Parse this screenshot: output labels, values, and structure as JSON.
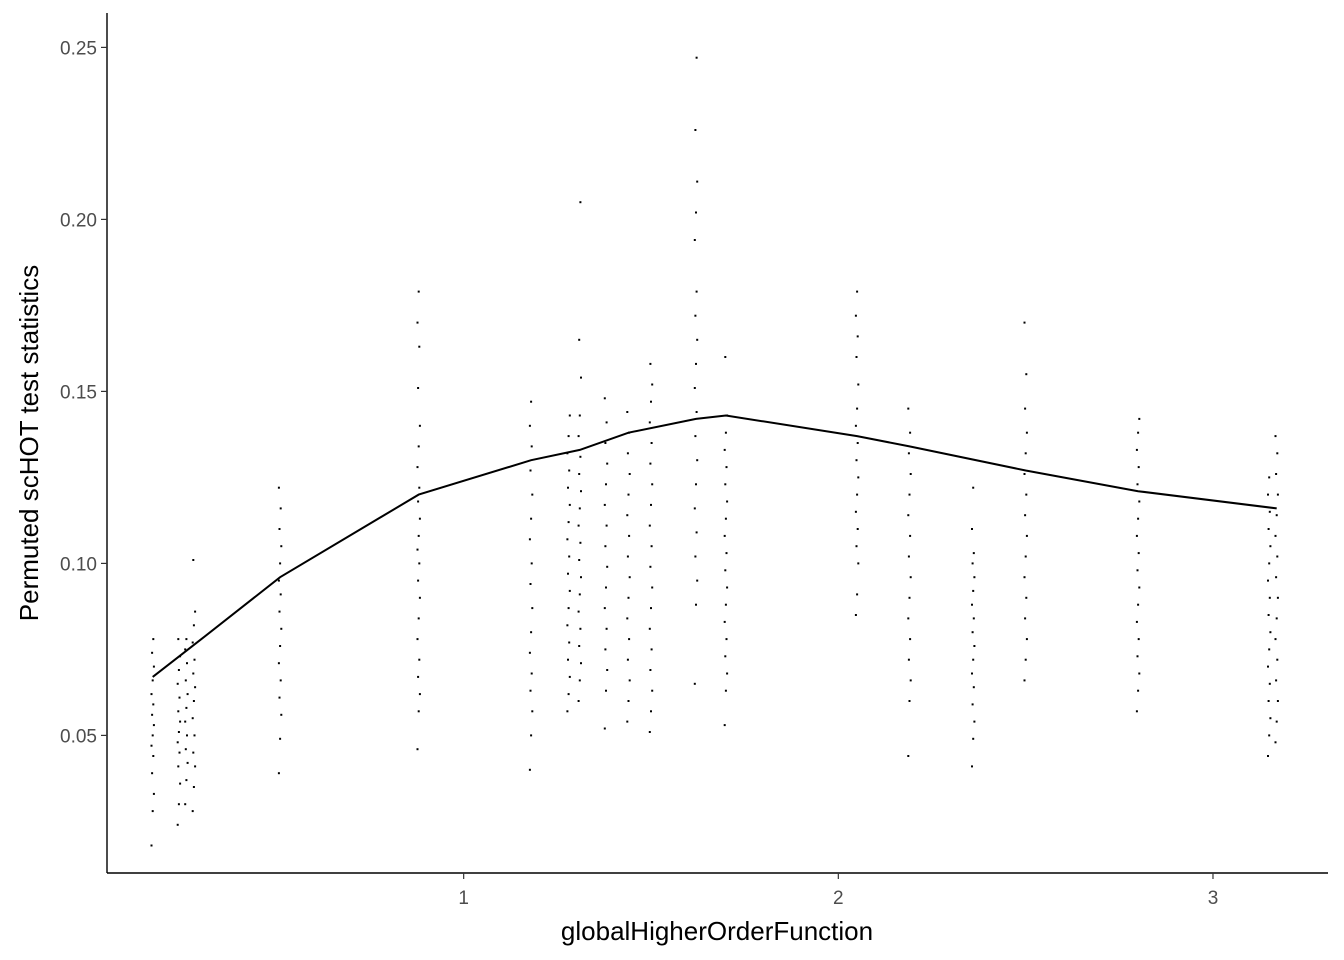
{
  "chart_data": {
    "type": "scatter",
    "xlabel": "globalHigherOrderFunction",
    "ylabel": "Permuted scHOT test statistics",
    "xlim": [
      0.048,
      3.307
    ],
    "ylim": [
      0.01,
      0.26
    ],
    "x_ticks": [
      1,
      2,
      3
    ],
    "x_tick_labels": [
      "1",
      "2",
      "3"
    ],
    "y_ticks": [
      0.05,
      0.1,
      0.15,
      0.2,
      0.25
    ],
    "y_tick_labels": [
      "0.05",
      "0.10",
      "0.15",
      "0.20",
      "0.25"
    ],
    "grid": false,
    "legend": "none",
    "colors": {
      "points": "#000000",
      "line": "#000000",
      "axes": "#000000",
      "tick_text": "#4d4d4d"
    },
    "point_columns": [
      {
        "x": 0.17,
        "ymin": 0.018,
        "ymax": 0.078,
        "values": [
          0.018,
          0.028,
          0.033,
          0.039,
          0.044,
          0.047,
          0.05,
          0.053,
          0.056,
          0.059,
          0.062,
          0.066,
          0.07,
          0.074,
          0.078
        ]
      },
      {
        "x": 0.24,
        "ymin": 0.024,
        "ymax": 0.078,
        "values": [
          0.024,
          0.03,
          0.036,
          0.041,
          0.045,
          0.048,
          0.051,
          0.054,
          0.057,
          0.061,
          0.065,
          0.069,
          0.073,
          0.078
        ]
      },
      {
        "x": 0.26,
        "ymin": 0.03,
        "ymax": 0.078,
        "values": [
          0.03,
          0.037,
          0.042,
          0.046,
          0.05,
          0.054,
          0.058,
          0.062,
          0.066,
          0.071,
          0.075,
          0.078
        ]
      },
      {
        "x": 0.28,
        "ymin": 0.028,
        "ymax": 0.101,
        "values": [
          0.028,
          0.035,
          0.041,
          0.045,
          0.05,
          0.055,
          0.06,
          0.064,
          0.068,
          0.072,
          0.077,
          0.082,
          0.086,
          0.101
        ]
      },
      {
        "x": 0.51,
        "ymin": 0.039,
        "ymax": 0.122,
        "values": [
          0.039,
          0.049,
          0.056,
          0.061,
          0.066,
          0.071,
          0.076,
          0.081,
          0.086,
          0.091,
          0.095,
          0.1,
          0.105,
          0.11,
          0.116,
          0.122
        ]
      },
      {
        "x": 0.88,
        "ymin": 0.046,
        "ymax": 0.179,
        "values": [
          0.046,
          0.057,
          0.062,
          0.067,
          0.072,
          0.078,
          0.084,
          0.09,
          0.095,
          0.1,
          0.104,
          0.108,
          0.113,
          0.118,
          0.122,
          0.128,
          0.134,
          0.14,
          0.151,
          0.163,
          0.17,
          0.179
        ]
      },
      {
        "x": 1.18,
        "ymin": 0.04,
        "ymax": 0.147,
        "values": [
          0.04,
          0.05,
          0.057,
          0.063,
          0.068,
          0.074,
          0.08,
          0.087,
          0.094,
          0.1,
          0.107,
          0.113,
          0.12,
          0.127,
          0.134,
          0.14,
          0.147
        ]
      },
      {
        "x": 1.28,
        "ymin": 0.057,
        "ymax": 0.143,
        "values": [
          0.057,
          0.062,
          0.067,
          0.072,
          0.077,
          0.082,
          0.087,
          0.092,
          0.097,
          0.102,
          0.107,
          0.112,
          0.117,
          0.122,
          0.127,
          0.132,
          0.137,
          0.143
        ]
      },
      {
        "x": 1.31,
        "ymin": 0.06,
        "ymax": 0.205,
        "values": [
          0.06,
          0.066,
          0.071,
          0.076,
          0.081,
          0.086,
          0.091,
          0.096,
          0.101,
          0.106,
          0.111,
          0.116,
          0.121,
          0.126,
          0.131,
          0.137,
          0.143,
          0.154,
          0.165,
          0.205
        ]
      },
      {
        "x": 1.38,
        "ymin": 0.052,
        "ymax": 0.148,
        "values": [
          0.052,
          0.063,
          0.069,
          0.075,
          0.081,
          0.087,
          0.093,
          0.099,
          0.105,
          0.111,
          0.117,
          0.123,
          0.129,
          0.135,
          0.141,
          0.148
        ]
      },
      {
        "x": 1.44,
        "ymin": 0.054,
        "ymax": 0.144,
        "values": [
          0.054,
          0.06,
          0.066,
          0.072,
          0.078,
          0.084,
          0.09,
          0.096,
          0.102,
          0.108,
          0.114,
          0.12,
          0.126,
          0.132,
          0.138,
          0.144
        ]
      },
      {
        "x": 1.5,
        "ymin": 0.051,
        "ymax": 0.158,
        "values": [
          0.051,
          0.057,
          0.063,
          0.069,
          0.075,
          0.081,
          0.087,
          0.093,
          0.099,
          0.105,
          0.111,
          0.117,
          0.123,
          0.129,
          0.135,
          0.141,
          0.147,
          0.152,
          0.158
        ]
      },
      {
        "x": 1.62,
        "ymin": 0.065,
        "ymax": 0.247,
        "values": [
          0.065,
          0.088,
          0.095,
          0.102,
          0.109,
          0.116,
          0.123,
          0.13,
          0.137,
          0.144,
          0.151,
          0.158,
          0.165,
          0.172,
          0.179,
          0.194,
          0.202,
          0.211,
          0.226,
          0.247
        ]
      },
      {
        "x": 1.7,
        "ymin": 0.053,
        "ymax": 0.16,
        "values": [
          0.053,
          0.063,
          0.068,
          0.073,
          0.078,
          0.083,
          0.088,
          0.093,
          0.098,
          0.103,
          0.108,
          0.113,
          0.118,
          0.123,
          0.128,
          0.133,
          0.138,
          0.143,
          0.16
        ]
      },
      {
        "x": 2.05,
        "ymin": 0.085,
        "ymax": 0.179,
        "values": [
          0.085,
          0.091,
          0.1,
          0.105,
          0.11,
          0.115,
          0.12,
          0.125,
          0.13,
          0.135,
          0.14,
          0.145,
          0.152,
          0.16,
          0.166,
          0.172,
          0.179
        ]
      },
      {
        "x": 2.19,
        "ymin": 0.044,
        "ymax": 0.145,
        "values": [
          0.044,
          0.06,
          0.066,
          0.072,
          0.078,
          0.084,
          0.09,
          0.096,
          0.102,
          0.108,
          0.114,
          0.12,
          0.126,
          0.132,
          0.138,
          0.145
        ]
      },
      {
        "x": 2.36,
        "ymin": 0.041,
        "ymax": 0.122,
        "values": [
          0.041,
          0.049,
          0.054,
          0.059,
          0.064,
          0.068,
          0.072,
          0.076,
          0.08,
          0.084,
          0.088,
          0.092,
          0.096,
          0.1,
          0.103,
          0.11,
          0.122
        ]
      },
      {
        "x": 2.5,
        "ymin": 0.066,
        "ymax": 0.17,
        "values": [
          0.066,
          0.072,
          0.078,
          0.084,
          0.09,
          0.096,
          0.102,
          0.108,
          0.114,
          0.12,
          0.126,
          0.132,
          0.138,
          0.145,
          0.155,
          0.17
        ]
      },
      {
        "x": 2.8,
        "ymin": 0.057,
        "ymax": 0.142,
        "values": [
          0.057,
          0.063,
          0.068,
          0.073,
          0.078,
          0.083,
          0.088,
          0.093,
          0.098,
          0.103,
          0.108,
          0.113,
          0.118,
          0.123,
          0.128,
          0.133,
          0.138,
          0.142
        ]
      },
      {
        "x": 3.15,
        "ymin": 0.044,
        "ymax": 0.125,
        "values": [
          0.044,
          0.05,
          0.055,
          0.06,
          0.065,
          0.07,
          0.075,
          0.08,
          0.085,
          0.09,
          0.095,
          0.1,
          0.105,
          0.11,
          0.115,
          0.12,
          0.125
        ]
      },
      {
        "x": 3.17,
        "ymin": 0.048,
        "ymax": 0.137,
        "values": [
          0.048,
          0.054,
          0.06,
          0.066,
          0.072,
          0.078,
          0.084,
          0.09,
          0.096,
          0.102,
          0.108,
          0.114,
          0.12,
          0.126,
          0.132,
          0.137
        ]
      }
    ],
    "trend_line": {
      "x": [
        0.17,
        0.3,
        0.51,
        0.88,
        1.18,
        1.31,
        1.44,
        1.62,
        1.7,
        2.05,
        2.19,
        2.5,
        2.8,
        3.17
      ],
      "y": [
        0.067,
        0.078,
        0.096,
        0.12,
        0.13,
        0.133,
        0.138,
        0.142,
        0.143,
        0.137,
        0.134,
        0.127,
        0.121,
        0.116
      ]
    }
  }
}
